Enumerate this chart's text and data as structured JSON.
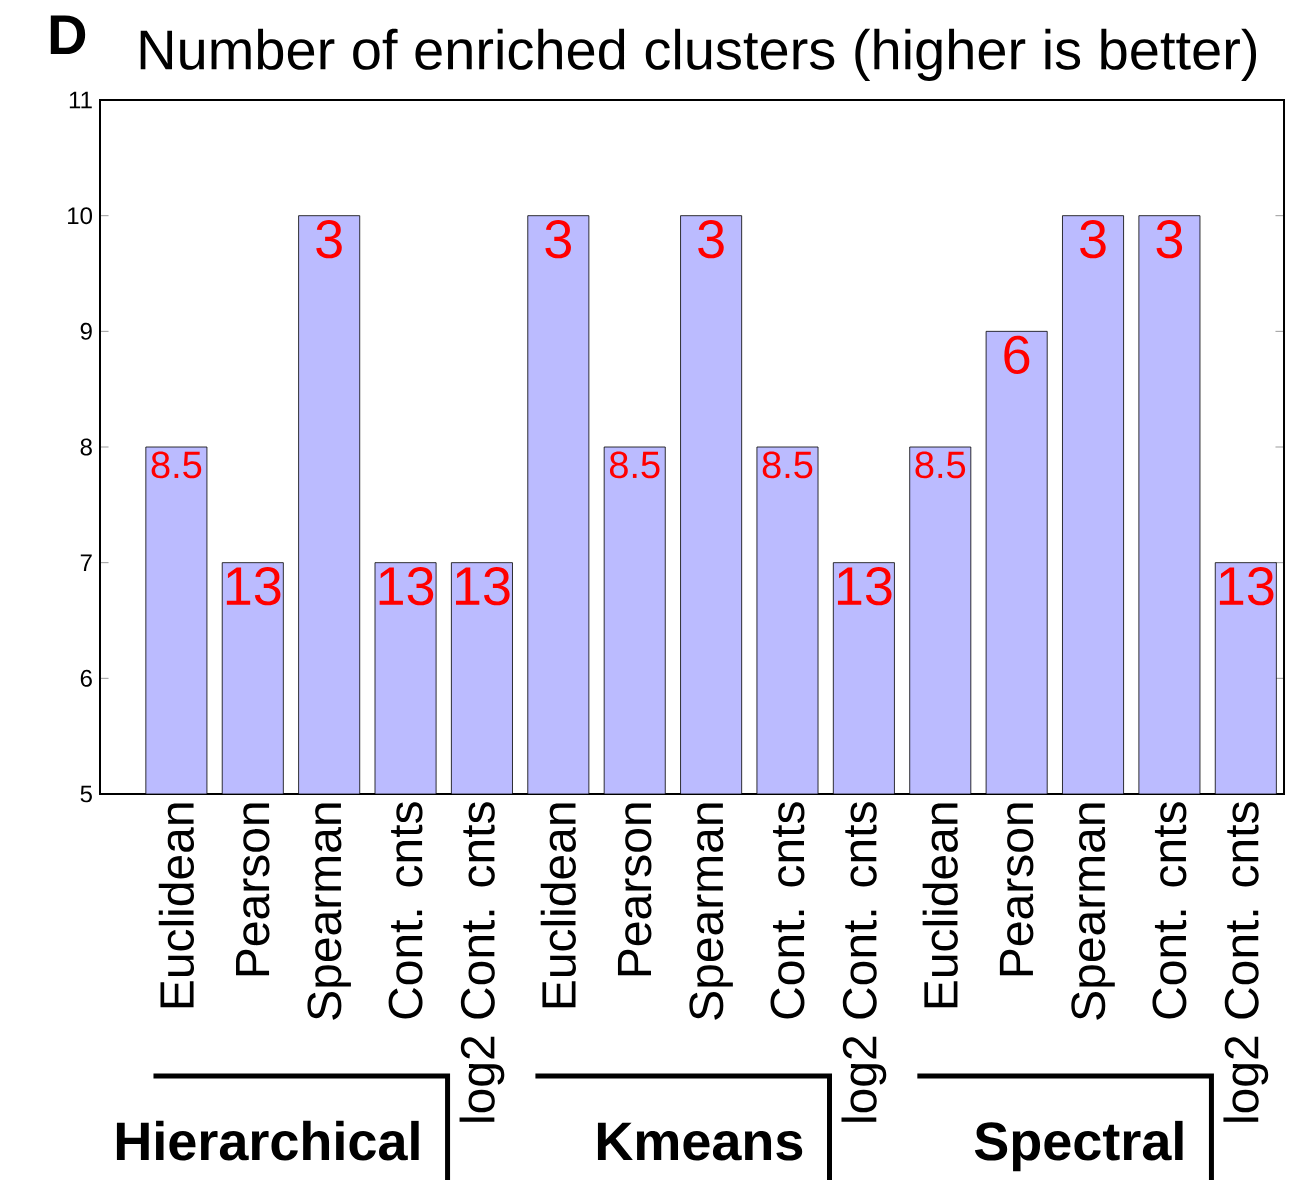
{
  "chart_data": {
    "type": "bar",
    "title": "Number of enriched clusters (higher is better)",
    "categories": [
      "Euclidean",
      "Pearson",
      "Spearman",
      "Cont. cnts",
      "log2 Cont. cnts",
      "Euclidean",
      "Pearson",
      "Spearman",
      "Cont. cnts",
      "log2 Cont. cnts",
      "Euclidean",
      "Pearson",
      "Spearman",
      "Cont. cnts",
      "log2 Cont. cnts"
    ],
    "values": [
      8,
      7,
      10,
      7,
      7,
      10,
      8,
      10,
      8,
      7,
      8,
      9,
      10,
      10,
      7
    ],
    "color": "#bbbbff",
    "ylim": [
      5,
      11
    ],
    "yticks": [
      5,
      6,
      7,
      8,
      9,
      10,
      11
    ],
    "grid": false,
    "annotations": [
      "D",
      "Hierarchical",
      "Kmeans",
      "Spectral",
      "8.5",
      "13",
      "3",
      "13",
      "13",
      "3",
      "8.5",
      "3",
      "8.5",
      "13",
      "8.5",
      "6",
      "3",
      "3",
      "13"
    ]
  }
}
